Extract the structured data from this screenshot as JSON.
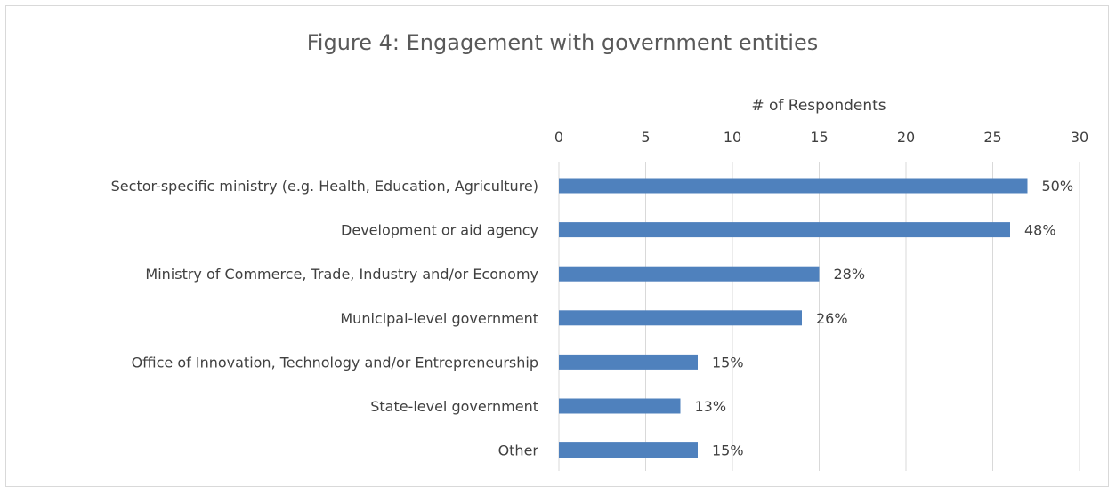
{
  "chart_data": {
    "type": "bar",
    "orientation": "horizontal",
    "title": "Figure 4: Engagement with government entities",
    "xlabel": "# of Respondents",
    "ylabel": "",
    "xlim": [
      0,
      30
    ],
    "x_ticks": [
      0,
      5,
      10,
      15,
      20,
      25,
      30
    ],
    "x_axis_position": "top",
    "grid": true,
    "bar_color": "#4f81bd",
    "categories": [
      "Sector-specific ministry (e.g. Health, Education, Agriculture)",
      "Development or aid agency",
      "Ministry of Commerce,  Trade, Industry and/or Economy",
      "Municipal-level government",
      "Office of Innovation, Technology and/or Entrepreneurship",
      "State-level government",
      "Other"
    ],
    "values": [
      27,
      26,
      15,
      14,
      8,
      7,
      8
    ],
    "data_labels": [
      "50%",
      "48%",
      "28%",
      "26%",
      "15%",
      "13%",
      "15%"
    ]
  }
}
